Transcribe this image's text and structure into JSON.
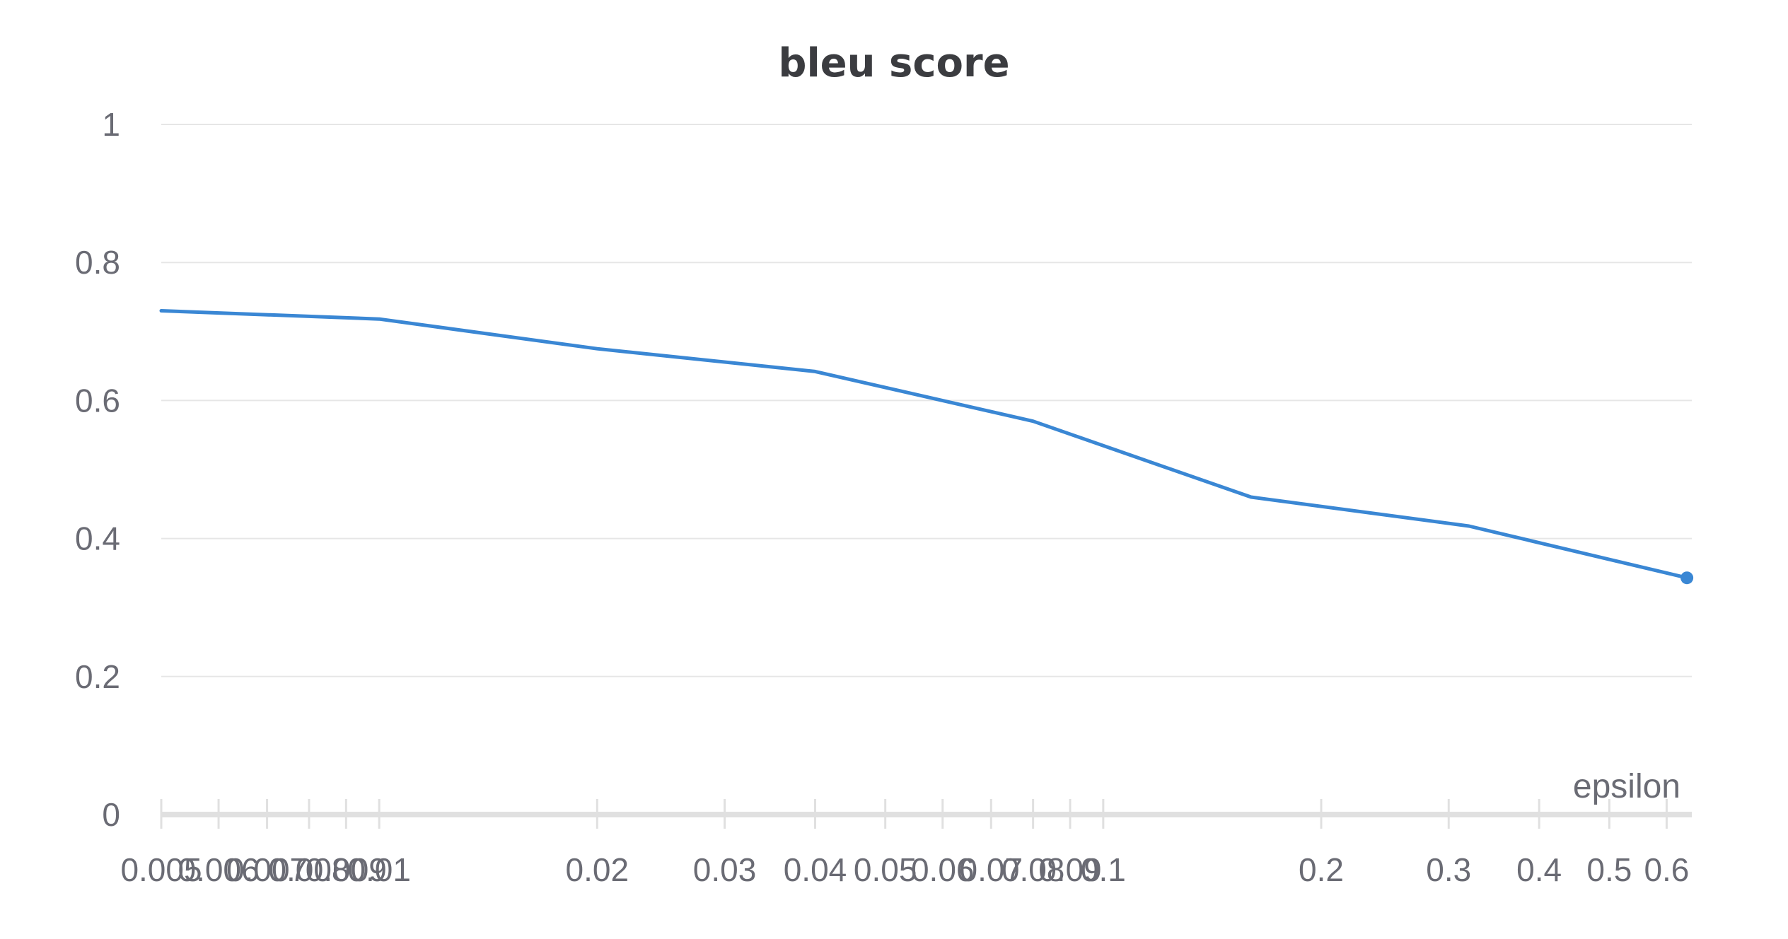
{
  "chart_data": {
    "type": "line",
    "title": "bleu score",
    "xlabel": "epsilon",
    "ylabel": "",
    "xscale": "log",
    "xlim": [
      0.005,
      0.65
    ],
    "ylim": [
      0,
      1
    ],
    "grid": true,
    "legend": "none",
    "color": "#3a87d4",
    "yticks": [
      "0",
      "0.2",
      "0.4",
      "0.6",
      "0.8",
      "1"
    ],
    "ytick_values": [
      0,
      0.2,
      0.4,
      0.6,
      0.8,
      1
    ],
    "xticks": [
      "0.005",
      "0.006",
      "0.007",
      "0.008",
      "0.009",
      "0.01",
      "0.02",
      "0.03",
      "0.04",
      "0.05",
      "0.06",
      "0.07",
      "0.08",
      "0.09",
      "0.1",
      "0.2",
      "0.3",
      "0.4",
      "0.5",
      "0.6"
    ],
    "xtick_values": [
      0.005,
      0.006,
      0.007,
      0.008,
      0.009,
      0.01,
      0.02,
      0.03,
      0.04,
      0.05,
      0.06,
      0.07,
      0.08,
      0.09,
      0.1,
      0.2,
      0.3,
      0.4,
      0.5,
      0.6
    ],
    "series": [
      {
        "x": [
          0.005,
          0.01,
          0.02,
          0.04,
          0.08,
          0.16,
          0.32,
          0.64
        ],
        "y": [
          0.73,
          0.718,
          0.675,
          0.642,
          0.57,
          0.46,
          0.418,
          0.343
        ]
      }
    ]
  }
}
